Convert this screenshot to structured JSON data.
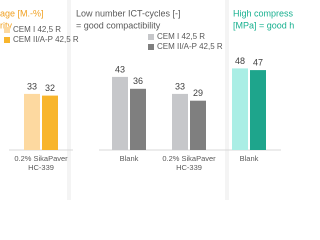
{
  "chart_data": [
    {
      "type": "bar",
      "title_lines": [
        "age [M.-%]",
        "rity"
      ],
      "title_color": "#f0a020",
      "categories": [
        "0.2% SikaPaver HC-339"
      ],
      "series": [
        {
          "name": "CEM I 42,5 R",
          "color": "#fdd9a0",
          "values": [
            33
          ]
        },
        {
          "name": "CEM II/A-P 42,5 R",
          "color": "#f8b52c",
          "values": [
            32
          ]
        }
      ],
      "ylim": [
        0,
        50
      ]
    },
    {
      "type": "bar",
      "title_lines": [
        "Low number ICT-cycles [-]",
        "= good compactibility"
      ],
      "title_color": "#595959",
      "categories": [
        "Blank",
        "0.2% SikaPaver HC-339"
      ],
      "series": [
        {
          "name": "CEM I 42,5 R",
          "color": "#c6c7ca",
          "values": [
            43,
            33
          ]
        },
        {
          "name": "CEM II/A-P 42,5 R",
          "color": "#7f7f7f",
          "values": [
            36,
            29
          ]
        }
      ],
      "ylim": [
        0,
        50
      ]
    },
    {
      "type": "bar",
      "title_lines": [
        "High compress",
        "[MPa] = good h"
      ],
      "title_color": "#17b08f",
      "categories": [
        "Blank"
      ],
      "series": [
        {
          "color": "#aaeee5",
          "values": [
            48
          ]
        },
        {
          "color": "#1ea58c",
          "values": [
            47
          ]
        }
      ],
      "ylim": [
        0,
        50
      ]
    }
  ]
}
